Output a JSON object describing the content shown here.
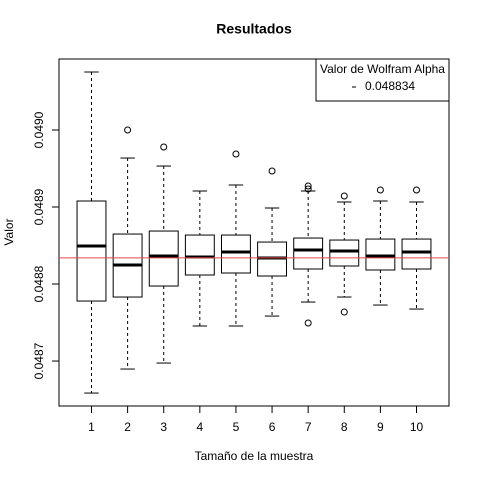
{
  "chart_data": {
    "type": "boxplot",
    "title": "Resultados",
    "xlabel": "Tamaño de la muestra",
    "ylabel": "Valor",
    "categories": [
      "1",
      "2",
      "3",
      "4",
      "5",
      "6",
      "7",
      "8",
      "9",
      "10"
    ],
    "boxes": [
      {
        "low": 0.0486584,
        "q1": 0.0487779,
        "median": 0.0488494,
        "q3": 0.0489078,
        "high": 0.0490753,
        "outliers": []
      },
      {
        "low": 0.0486896,
        "q1": 0.0487831,
        "median": 0.0488247,
        "q3": 0.0488649,
        "high": 0.0489636,
        "outliers": [
          0.049
        ]
      },
      {
        "low": 0.0486974,
        "q1": 0.0487974,
        "median": 0.0488364,
        "q3": 0.0488688,
        "high": 0.0489532,
        "outliers": [
          0.0489779
        ]
      },
      {
        "low": 0.0487455,
        "q1": 0.0488117,
        "median": 0.0488351,
        "q3": 0.0488636,
        "high": 0.0489208,
        "outliers": []
      },
      {
        "low": 0.0487455,
        "q1": 0.0488143,
        "median": 0.0488416,
        "q3": 0.0488636,
        "high": 0.0489286,
        "outliers": [
          0.0489688
        ]
      },
      {
        "low": 0.0487584,
        "q1": 0.0488104,
        "median": 0.0488338,
        "q3": 0.0488545,
        "high": 0.0488987,
        "outliers": [
          0.0489468
        ]
      },
      {
        "low": 0.0487766,
        "q1": 0.0488195,
        "median": 0.0488442,
        "q3": 0.0488597,
        "high": 0.0489208,
        "outliers": [
          0.0489273,
          0.0489234,
          0.0487494
        ]
      },
      {
        "low": 0.0487831,
        "q1": 0.0488234,
        "median": 0.0488429,
        "q3": 0.0488571,
        "high": 0.0489065,
        "outliers": [
          0.0489143,
          0.0487636
        ]
      },
      {
        "low": 0.0487727,
        "q1": 0.0488182,
        "median": 0.0488364,
        "q3": 0.0488584,
        "high": 0.0489078,
        "outliers": [
          0.0489221
        ]
      },
      {
        "low": 0.0487675,
        "q1": 0.0488195,
        "median": 0.0488416,
        "q3": 0.0488584,
        "high": 0.0489065,
        "outliers": [
          0.0489221
        ]
      }
    ],
    "reference": {
      "value": 0.048834,
      "color": "#e0484b"
    },
    "legend_title": "Valor de Wolfram Alpha",
    "legend": "topright",
    "ylim": [
      0.0486416,
      0.0490922
    ],
    "yticks": [
      0.0487,
      0.0488,
      0.0489,
      {
        "value": 0.049,
        "label": "0.0490"
      }
    ]
  }
}
